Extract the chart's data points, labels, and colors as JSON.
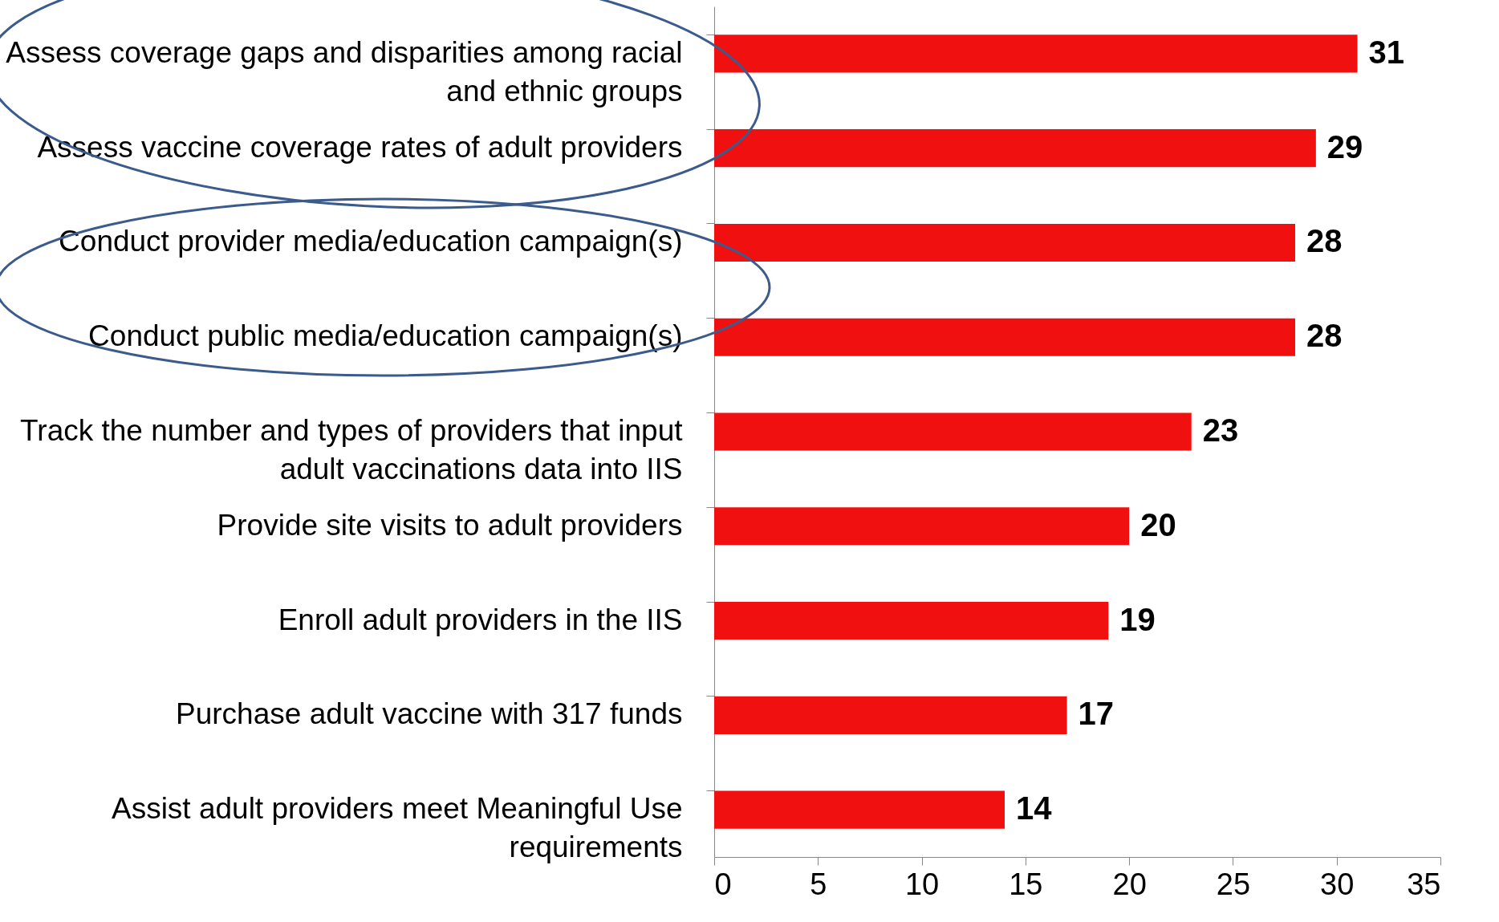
{
  "chart_data": {
    "type": "bar",
    "orientation": "horizontal",
    "categories": [
      "Assess coverage gaps and disparities among racial and ethnic groups",
      "Assess vaccine coverage rates of adult providers",
      "Conduct provider media/education campaign(s)",
      "Conduct public media/education campaign(s)",
      "Track the number and types of providers that input adult vaccinations data into IIS",
      "Provide site visits to adult providers",
      "Enroll adult providers in the IIS",
      "Purchase adult vaccine with 317 funds",
      "Assist adult providers meet Meaningful Use requirements"
    ],
    "values": [
      31,
      29,
      28,
      28,
      23,
      20,
      19,
      17,
      14
    ],
    "color": "#f01010",
    "xlim": [
      0,
      35
    ],
    "xticks": [
      0,
      5,
      10,
      15,
      20,
      25,
      30,
      35
    ],
    "grid": false,
    "data_labels": true
  }
}
